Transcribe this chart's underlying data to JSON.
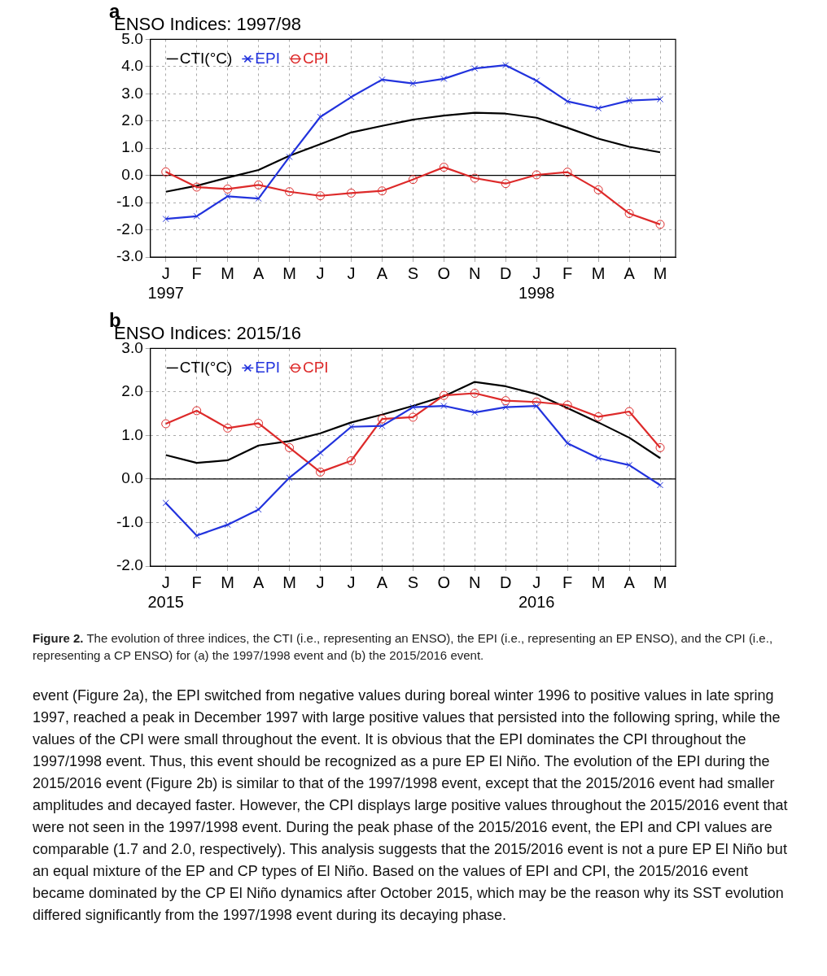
{
  "chart_data": [
    {
      "type": "line",
      "title": "ENSO Indices: 1997/98",
      "annotations": [
        "a"
      ],
      "categories": [
        "J\n1997",
        "F",
        "M",
        "A",
        "M",
        "J",
        "J",
        "A",
        "S",
        "O",
        "N",
        "D",
        "J\n1998",
        "F",
        "M",
        "A",
        "M"
      ],
      "ylim": [
        -3,
        5
      ],
      "yticks": [
        {
          "value": -3,
          "label": "-3.0"
        },
        {
          "value": -2,
          "label": "-2.0"
        },
        {
          "value": -1,
          "label": "-1.0"
        },
        {
          "value": 0,
          "label": "0.0"
        },
        {
          "value": 1,
          "label": "1.0"
        },
        {
          "value": 2,
          "label": "2.0"
        },
        {
          "value": 3,
          "label": "3.0"
        },
        {
          "value": 4,
          "label": "4.0"
        },
        {
          "value": 5,
          "label": "5.0"
        }
      ],
      "grid": true,
      "legend": "top left",
      "ref_lines": [
        {
          "axis": "y",
          "value": 0,
          "color": "#000000"
        }
      ],
      "series": [
        {
          "name": "CTI(°C)",
          "color": "#000000",
          "marker": "none",
          "values": [
            -0.6,
            -0.38,
            -0.08,
            0.2,
            0.72,
            1.15,
            1.58,
            1.82,
            2.05,
            2.2,
            2.3,
            2.27,
            2.12,
            1.75,
            1.35,
            1.05,
            0.85
          ]
        },
        {
          "name": "EPI",
          "color": "#2233dd",
          "marker": "cross",
          "values": [
            -1.6,
            -1.5,
            -0.77,
            -0.85,
            0.68,
            2.15,
            2.88,
            3.52,
            3.38,
            3.55,
            3.93,
            4.05,
            3.48,
            2.72,
            2.47,
            2.75,
            2.8
          ]
        },
        {
          "name": "CPI",
          "color": "#dd2a2a",
          "marker": "circle",
          "values": [
            0.13,
            -0.43,
            -0.5,
            -0.35,
            -0.6,
            -0.75,
            -0.65,
            -0.57,
            -0.15,
            0.3,
            -0.1,
            -0.3,
            0.02,
            0.12,
            -0.53,
            -1.4,
            -1.8
          ]
        }
      ]
    },
    {
      "type": "line",
      "title": "ENSO Indices: 2015/16",
      "annotations": [
        "b",
        "Figure 2. The evolution of three indices, the CTI (i.e., representing an ENSO), the EPI (i.e., representing an EP ENSO), and the CPI (i.e., representing a CP ENSO) for (a) the 1997/1998 event and (b) the 2015/2016 event.",
        "event (Figure 2a), the EPI switched from negative values during boreal winter 1996 to positive values in late spring 1997, reached a peak in December 1997 with large positive values that persisted into the following spring, while the values of the CPI were small throughout the event. It is obvious that the EPI dominates the CPI throughout the 1997/1998 event. Thus, this event should be recognized as a pure EP El Niño. The evolution of the EPI during the 2015/2016 event (Figure 2b) is similar to that of the 1997/1998 event, except that the 2015/2016 event had smaller amplitudes and decayed faster. However, the CPI displays large positive values throughout the 2015/2016 event that were not seen in the 1997/1998 event. During the peak phase of the 2015/2016 event, the EPI and CPI values are comparable (1.7 and 2.0, respectively). This analysis suggests that the 2015/2016 event is not a pure EP El Niño but an equal mixture of the EP and CP types of El Niño. Based on the values of EPI and CPI, the 2015/2016 event became dominated by the CP El Niño dynamics after October 2015, which may be the reason why its SST evolution differed significantly from the 1997/1998 event during its decaying phase."
      ],
      "categories": [
        "J\n2015",
        "F",
        "M",
        "A",
        "M",
        "J",
        "J",
        "A",
        "S",
        "O",
        "N",
        "D",
        "J\n2016",
        "F",
        "M",
        "A",
        "M"
      ],
      "ylim": [
        -2,
        3
      ],
      "yticks": [
        {
          "value": -2,
          "label": "-2.0"
        },
        {
          "value": -1,
          "label": "-1.0"
        },
        {
          "value": 0,
          "label": "0.0"
        },
        {
          "value": 1,
          "label": "1.0"
        },
        {
          "value": 2,
          "label": "2.0"
        },
        {
          "value": 3,
          "label": "3.0"
        }
      ],
      "grid": true,
      "legend": "top left",
      "ref_lines": [
        {
          "axis": "y",
          "value": 0,
          "color": "#000000"
        }
      ],
      "series": [
        {
          "name": "CTI(°C)",
          "color": "#000000",
          "marker": "none",
          "values": [
            0.55,
            0.37,
            0.43,
            0.77,
            0.87,
            1.05,
            1.3,
            1.48,
            1.68,
            1.9,
            2.23,
            2.13,
            1.95,
            1.63,
            1.3,
            0.95,
            0.48
          ]
        },
        {
          "name": "EPI",
          "color": "#2233dd",
          "marker": "cross",
          "values": [
            -0.55,
            -1.3,
            -1.05,
            -0.7,
            0.03,
            0.6,
            1.2,
            1.22,
            1.65,
            1.68,
            1.53,
            1.65,
            1.68,
            0.82,
            0.48,
            0.32,
            -0.14
          ]
        },
        {
          "name": "CPI",
          "color": "#dd2a2a",
          "marker": "circle",
          "values": [
            1.27,
            1.57,
            1.17,
            1.28,
            0.72,
            0.16,
            0.42,
            1.38,
            1.42,
            1.92,
            1.97,
            1.8,
            1.77,
            1.7,
            1.43,
            1.55,
            0.72
          ]
        }
      ]
    }
  ]
}
